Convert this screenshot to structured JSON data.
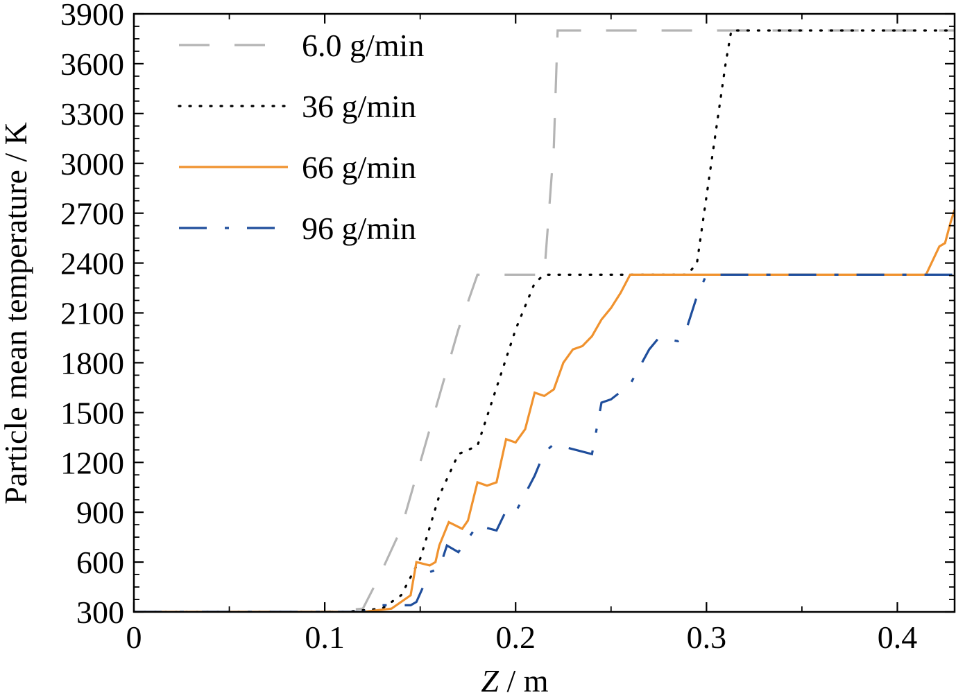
{
  "chart_data": {
    "type": "line",
    "title": "",
    "xlabel_italic": "Z",
    "xlabel_rest": " / m",
    "ylabel": "Particle mean temperature / K",
    "xlim": [
      0,
      0.43
    ],
    "ylim": [
      300,
      3900
    ],
    "x_ticks": [
      "0",
      "0.1",
      "0.2",
      "0.3",
      "0.4"
    ],
    "x_tick_values": [
      0,
      0.1,
      0.2,
      0.3,
      0.4
    ],
    "y_ticks": [
      "300",
      "600",
      "900",
      "1200",
      "1500",
      "1800",
      "2100",
      "2400",
      "2700",
      "3000",
      "3300",
      "3600",
      "3900"
    ],
    "y_tick_values": [
      300,
      600,
      900,
      1200,
      1500,
      1800,
      2100,
      2400,
      2700,
      3000,
      3300,
      3600,
      3900
    ],
    "grid": false,
    "legend_position": "top-left",
    "series": [
      {
        "name": "6.0 g/min",
        "color": "#b4b4b4",
        "style": "longdash",
        "x": [
          0,
          0.1,
          0.12,
          0.128,
          0.14,
          0.15,
          0.16,
          0.17,
          0.18,
          0.186,
          0.2,
          0.21,
          0.215,
          0.22,
          0.222,
          0.3,
          0.43
        ],
        "y": [
          300,
          300,
          320,
          500,
          800,
          1200,
          1600,
          2000,
          2330,
          2330,
          2330,
          2330,
          2330,
          3100,
          3800,
          3800,
          3800
        ]
      },
      {
        "name": "36 g/min",
        "color": "#000000",
        "style": "dotted",
        "x": [
          0,
          0.11,
          0.13,
          0.14,
          0.15,
          0.16,
          0.17,
          0.18,
          0.19,
          0.2,
          0.21,
          0.215,
          0.25,
          0.29,
          0.295,
          0.3,
          0.305,
          0.31,
          0.313,
          0.43
        ],
        "y": [
          300,
          300,
          320,
          400,
          620,
          1000,
          1250,
          1300,
          1650,
          2000,
          2280,
          2330,
          2330,
          2330,
          2400,
          2800,
          3200,
          3600,
          3800,
          3800
        ]
      },
      {
        "name": "66 g/min",
        "color": "#f0922e",
        "style": "solid",
        "x": [
          0,
          0.12,
          0.135,
          0.145,
          0.148,
          0.155,
          0.158,
          0.16,
          0.165,
          0.172,
          0.175,
          0.18,
          0.185,
          0.19,
          0.195,
          0.2,
          0.205,
          0.21,
          0.215,
          0.22,
          0.225,
          0.23,
          0.235,
          0.24,
          0.245,
          0.25,
          0.255,
          0.26,
          0.3,
          0.415,
          0.422,
          0.425,
          0.428,
          0.43
        ],
        "y": [
          300,
          300,
          320,
          400,
          600,
          580,
          600,
          700,
          840,
          800,
          850,
          1080,
          1060,
          1080,
          1340,
          1320,
          1400,
          1620,
          1600,
          1640,
          1800,
          1880,
          1900,
          1960,
          2060,
          2130,
          2220,
          2330,
          2330,
          2330,
          2500,
          2520,
          2650,
          2720
        ]
      },
      {
        "name": "96 g/min",
        "color": "#1f4e9c",
        "style": "dashdot",
        "x": [
          0,
          0.12,
          0.13,
          0.145,
          0.148,
          0.155,
          0.16,
          0.164,
          0.17,
          0.18,
          0.19,
          0.195,
          0.2,
          0.21,
          0.215,
          0.22,
          0.24,
          0.245,
          0.25,
          0.26,
          0.27,
          0.275,
          0.285,
          0.29,
          0.295,
          0.3,
          0.43
        ],
        "y": [
          300,
          300,
          340,
          340,
          360,
          540,
          560,
          700,
          660,
          820,
          790,
          910,
          900,
          1120,
          1260,
          1310,
          1250,
          1560,
          1580,
          1670,
          1880,
          1950,
          1930,
          2020,
          2200,
          2330,
          2330
        ]
      }
    ]
  }
}
